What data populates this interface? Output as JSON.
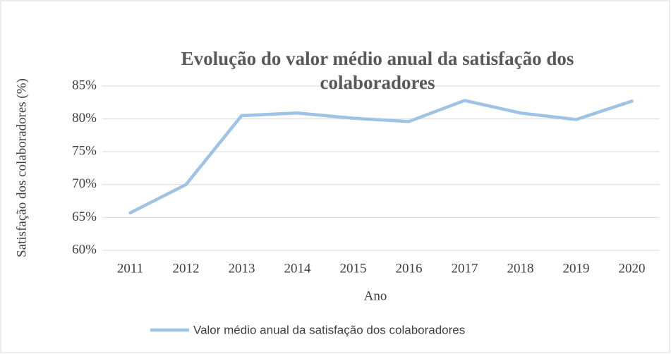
{
  "chart_data": {
    "type": "line",
    "title": "Evolução do valor médio anual da satisfação dos colaboradores",
    "x_label": "Ano",
    "y_label": "Satisfação dos colaboradores (%)",
    "categories": [
      "2011",
      "2012",
      "2013",
      "2014",
      "2015",
      "2016",
      "2017",
      "2018",
      "2019",
      "2020"
    ],
    "series": [
      {
        "name": "Valor médio anual da satisfação dos colaboradores",
        "color": "#9dc3e6",
        "values": [
          65.7,
          70.0,
          80.5,
          80.9,
          80.1,
          79.6,
          82.8,
          80.9,
          79.9,
          82.7
        ]
      }
    ],
    "ylim": [
      60,
      85
    ],
    "yticks": [
      {
        "value": 60,
        "label": "60%"
      },
      {
        "value": 65,
        "label": "65%"
      },
      {
        "value": 70,
        "label": "70%"
      },
      {
        "value": 75,
        "label": "75%"
      },
      {
        "value": 80,
        "label": "80%"
      },
      {
        "value": 85,
        "label": "85%"
      }
    ],
    "grid": true,
    "legend": "bottom"
  }
}
